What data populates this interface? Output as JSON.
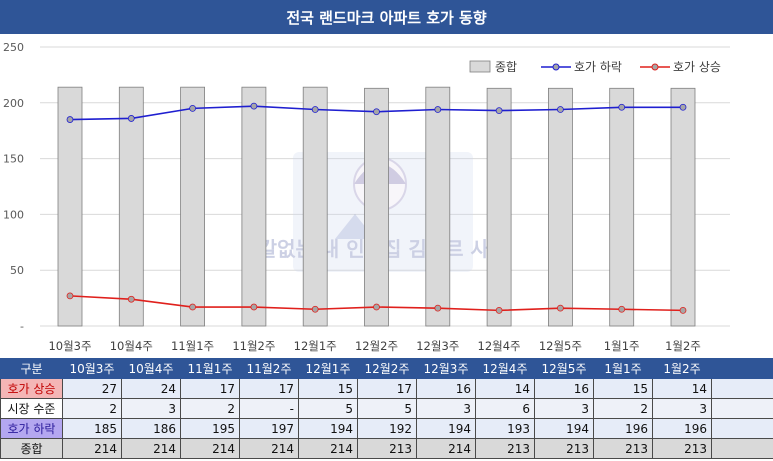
{
  "title": "전국 랜드마크 아파트 호가 동향",
  "colors": {
    "header_bg": "#2f5597",
    "bar_fill": "#d9d9d9",
    "bar_stroke": "#7f7f7f",
    "down_line": "#1f1fd0",
    "up_line": "#e0201c"
  },
  "chart_data": {
    "type": "bar+line",
    "categories": [
      "10월3주",
      "10월4주",
      "11월1주",
      "11월2주",
      "12월1주",
      "12월2주",
      "12월3주",
      "12월4주",
      "12월5주",
      "1월1주",
      "1월2주"
    ],
    "ylim": [
      0,
      250
    ],
    "yticks": [
      "-",
      "50",
      "100",
      "150",
      "200",
      "250"
    ],
    "grid": true,
    "legend_position": "top-right",
    "series": [
      {
        "name": "종합",
        "kind": "bar",
        "values": [
          214,
          214,
          214,
          214,
          214,
          213,
          214,
          213,
          213,
          213,
          213
        ]
      },
      {
        "name": "호가 하락",
        "kind": "line",
        "values": [
          185,
          186,
          195,
          197,
          194,
          192,
          194,
          193,
          194,
          196,
          196
        ]
      },
      {
        "name": "호가 상승",
        "kind": "line",
        "values": [
          27,
          24,
          17,
          17,
          15,
          17,
          16,
          14,
          16,
          15,
          14
        ]
      }
    ]
  },
  "table": {
    "header_label": "구분",
    "rows": [
      {
        "label": "호가 상승",
        "values": [
          "27",
          "24",
          "17",
          "17",
          "15",
          "17",
          "16",
          "14",
          "16",
          "15",
          "14"
        ]
      },
      {
        "label": "시장 수준",
        "values": [
          "2",
          "3",
          "2",
          "-",
          "5",
          "5",
          "3",
          "6",
          "3",
          "2",
          "3"
        ]
      },
      {
        "label": "호가 하락",
        "values": [
          "185",
          "186",
          "195",
          "197",
          "194",
          "192",
          "194",
          "193",
          "194",
          "196",
          "196"
        ]
      },
      {
        "label": "종합",
        "values": [
          "214",
          "214",
          "214",
          "214",
          "214",
          "213",
          "214",
          "213",
          "213",
          "213",
          "213"
        ]
      }
    ]
  },
  "watermark_text": "칼없는 내 인생집 김빠르 사자"
}
